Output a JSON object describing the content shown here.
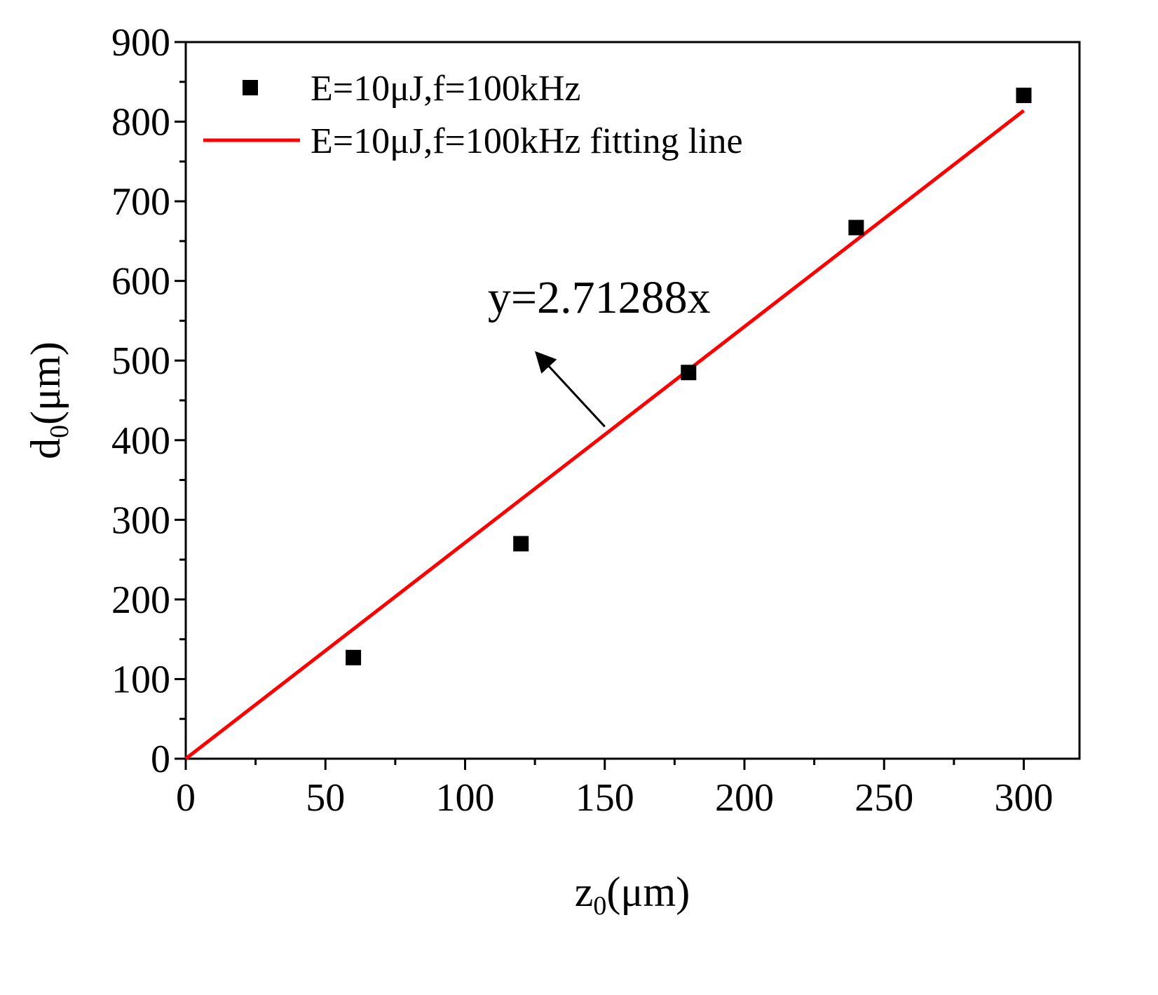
{
  "chart_data": {
    "type": "scatter",
    "title": "",
    "xlabel": {
      "base": "z",
      "sub": "0",
      "unit": "(μm)"
    },
    "ylabel": {
      "base": "d",
      "sub": "0",
      "unit": "(μm)"
    },
    "xlim": [
      0,
      320
    ],
    "ylim": [
      0,
      900
    ],
    "x_ticks": [
      0,
      50,
      100,
      150,
      200,
      250,
      300
    ],
    "y_ticks": [
      0,
      100,
      200,
      300,
      400,
      500,
      600,
      700,
      800,
      900
    ],
    "grid": false,
    "legend_position": "top-left",
    "series": [
      {
        "name": "E=10μJ,f=100kHz",
        "kind": "scatter",
        "marker": "square",
        "color": "#000000",
        "x": [
          60,
          120,
          180,
          240,
          300
        ],
        "y": [
          127,
          270,
          485,
          667,
          833
        ]
      },
      {
        "name": "E=10μJ,f=100kHz fitting line",
        "kind": "line",
        "color": "#ff0000",
        "slope": 2.71288,
        "x": [
          0,
          300
        ],
        "y": [
          0,
          813.864
        ]
      }
    ],
    "annotations": [
      {
        "text": "y=2.71288x",
        "x": 148,
        "y": 560,
        "arrow_from": [
          150,
          417
        ],
        "arrow_to": [
          126,
          508
        ]
      }
    ]
  }
}
